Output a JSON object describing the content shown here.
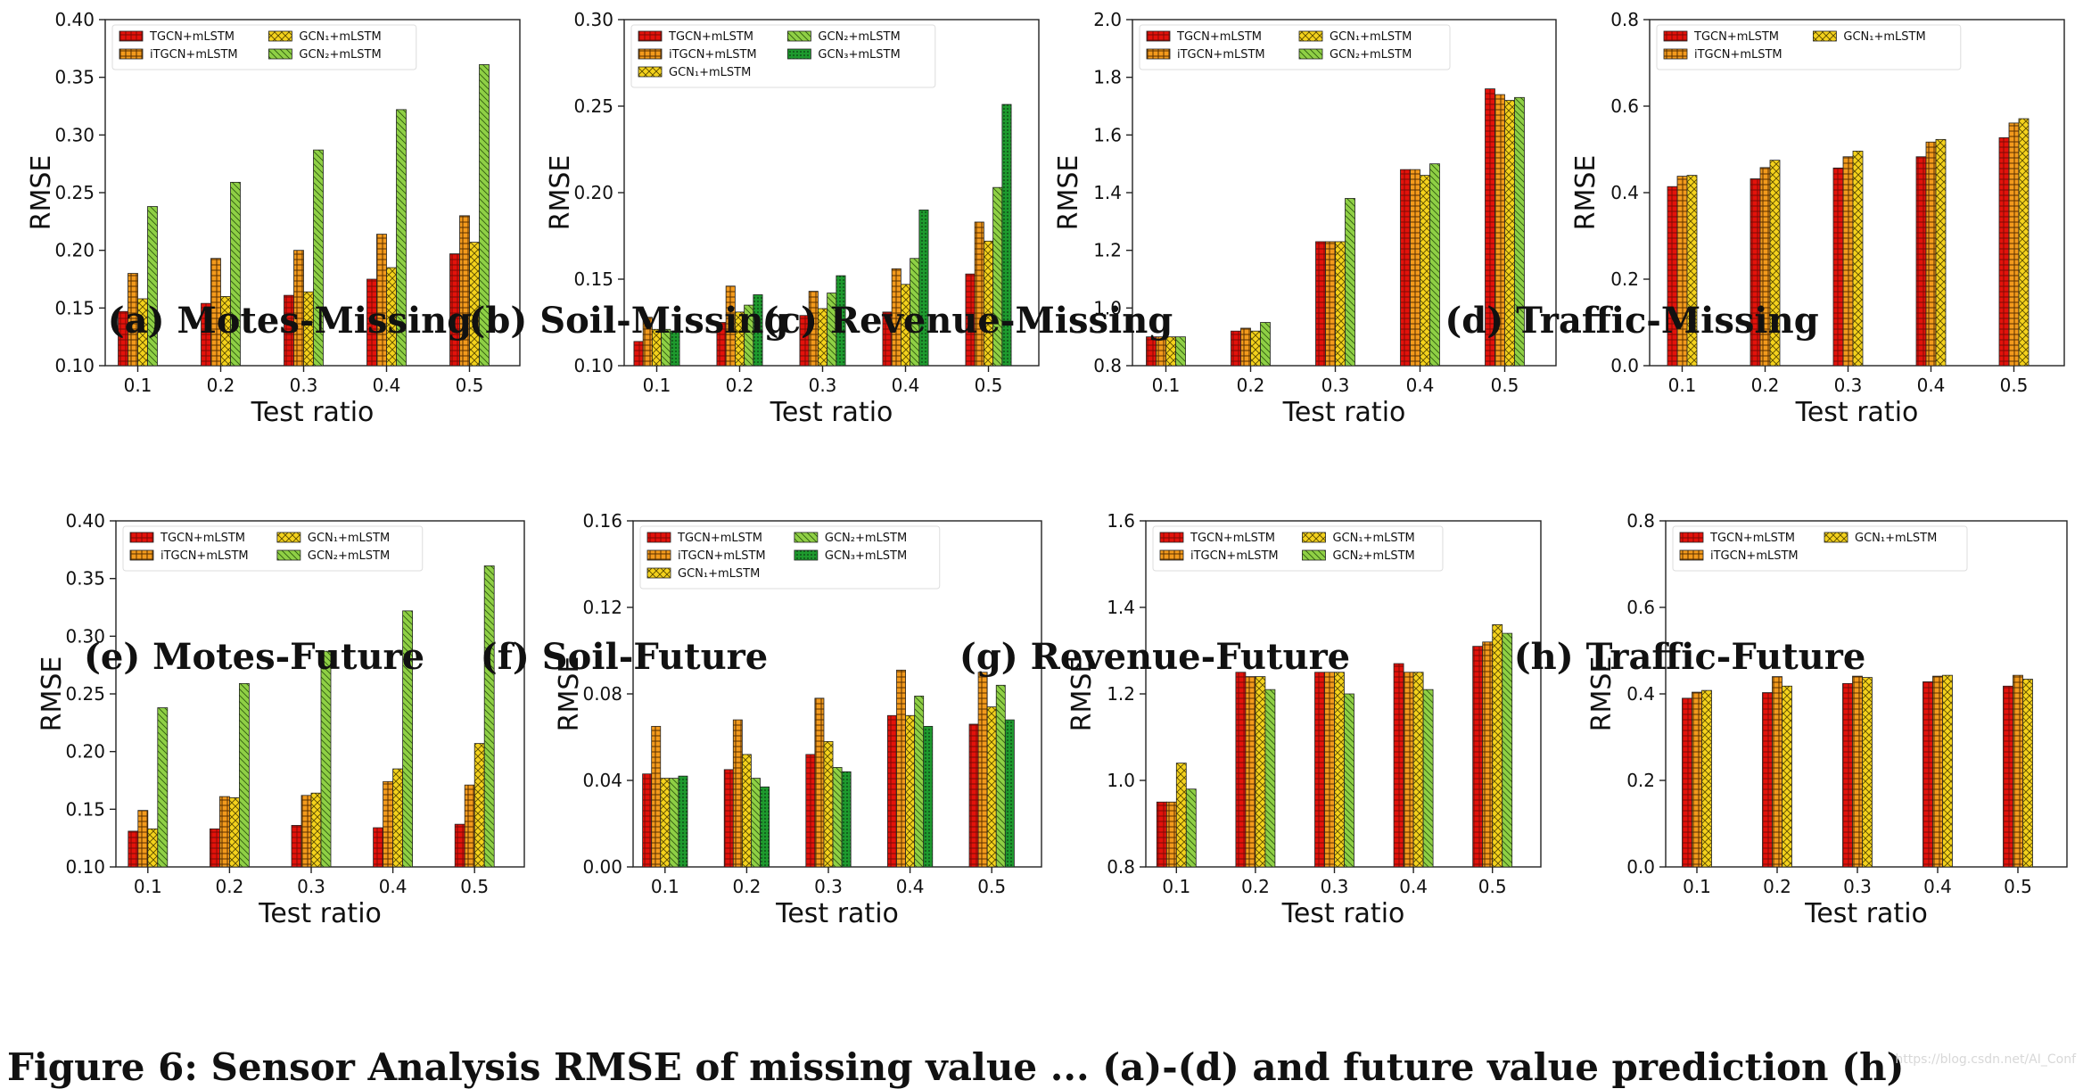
{
  "figure": {
    "caption_fragment": "Figure 6: Sensor Analysis RMSE of missing value ... (a)-(d) and future value prediction (h)",
    "watermark": "https://blog.csdn.net/AI_Conf"
  },
  "colors": {
    "TGCN+mLSTM": "#e3120b",
    "iTGCN+mLSTM": "#f39a1c",
    "GCN1+mLSTM": "#f4d21c",
    "GCN2+mLSTM": "#8fd045",
    "GCN3+mLSTM": "#1e9a2e"
  },
  "chart_data": [
    {
      "panel": "a",
      "caption": "(a) Motes-Missing",
      "type": "bar",
      "xlabel": "Test ratio",
      "ylabel": "RMSE",
      "categories": [
        "0.1",
        "0.2",
        "0.3",
        "0.4",
        "0.5"
      ],
      "ylim": [
        0.1,
        0.4
      ],
      "yticks": [
        "0.10",
        "0.15",
        "0.20",
        "0.25",
        "0.30",
        "0.35",
        "0.40"
      ],
      "legend": {
        "placement": "top-left",
        "columns": 2
      },
      "series": [
        {
          "name": "TGCN+mLSTM",
          "values": [
            0.147,
            0.154,
            0.161,
            0.175,
            0.197
          ]
        },
        {
          "name": "iTGCN+mLSTM",
          "values": [
            0.18,
            0.193,
            0.2,
            0.214,
            0.23
          ]
        },
        {
          "name": "GCN₁+mLSTM",
          "values": [
            0.158,
            0.16,
            0.164,
            0.185,
            0.207
          ]
        },
        {
          "name": "GCN₂+mLSTM",
          "values": [
            0.238,
            0.259,
            0.287,
            0.322,
            0.361
          ]
        }
      ]
    },
    {
      "panel": "b",
      "caption": "(b) Soil-Missing",
      "type": "bar",
      "xlabel": "Test ratio",
      "ylabel": "RMSE",
      "categories": [
        "0.1",
        "0.2",
        "0.3",
        "0.4",
        "0.5"
      ],
      "ylim": [
        0.1,
        0.3
      ],
      "yticks": [
        "0.10",
        "0.15",
        "0.20",
        "0.25",
        "0.30"
      ],
      "legend": {
        "placement": "top-left",
        "columns": 2
      },
      "series": [
        {
          "name": "TGCN+mLSTM",
          "values": [
            0.114,
            0.125,
            0.129,
            0.131,
            0.153
          ]
        },
        {
          "name": "iTGCN+mLSTM",
          "values": [
            0.128,
            0.146,
            0.143,
            0.156,
            0.183
          ]
        },
        {
          "name": "GCN₁+mLSTM",
          "values": [
            0.121,
            0.131,
            0.133,
            0.147,
            0.172
          ]
        },
        {
          "name": "GCN₂+mLSTM",
          "values": [
            0.121,
            0.135,
            0.142,
            0.162,
            0.203
          ]
        },
        {
          "name": "GCN₃+mLSTM",
          "values": [
            0.12,
            0.141,
            0.152,
            0.19,
            0.251
          ]
        }
      ]
    },
    {
      "panel": "c",
      "caption": "(c) Revenue-Missing",
      "type": "bar",
      "xlabel": "Test ratio",
      "ylabel": "RMSE",
      "categories": [
        "0.1",
        "0.2",
        "0.3",
        "0.4",
        "0.5"
      ],
      "ylim": [
        0.8,
        2.0
      ],
      "yticks": [
        "0.8",
        "1.0",
        "1.2",
        "1.4",
        "1.6",
        "1.8",
        "2.0"
      ],
      "legend": {
        "placement": "top-left",
        "columns": 2
      },
      "series": [
        {
          "name": "TGCN+mLSTM",
          "values": [
            0.9,
            0.92,
            1.23,
            1.48,
            1.76
          ]
        },
        {
          "name": "iTGCN+mLSTM",
          "values": [
            0.9,
            0.93,
            1.23,
            1.48,
            1.74
          ]
        },
        {
          "name": "GCN₁+mLSTM",
          "values": [
            0.9,
            0.92,
            1.23,
            1.46,
            1.72
          ]
        },
        {
          "name": "GCN₂+mLSTM",
          "values": [
            0.9,
            0.95,
            1.38,
            1.5,
            1.73
          ]
        }
      ]
    },
    {
      "panel": "d",
      "caption": "(d) Traffic-Missing",
      "type": "bar",
      "xlabel": "Test ratio",
      "ylabel": "RMSE",
      "categories": [
        "0.1",
        "0.2",
        "0.3",
        "0.4",
        "0.5"
      ],
      "ylim": [
        0.0,
        0.8
      ],
      "yticks": [
        "0.0",
        "0.2",
        "0.4",
        "0.6",
        "0.8"
      ],
      "legend": {
        "placement": "top-left",
        "columns": 2
      },
      "series": [
        {
          "name": "TGCN+mLSTM",
          "values": [
            0.414,
            0.432,
            0.457,
            0.483,
            0.527
          ]
        },
        {
          "name": "iTGCN+mLSTM",
          "values": [
            0.438,
            0.458,
            0.483,
            0.517,
            0.561
          ]
        },
        {
          "name": "GCN₁+mLSTM",
          "values": [
            0.44,
            0.475,
            0.496,
            0.523,
            0.571
          ]
        }
      ]
    },
    {
      "panel": "e",
      "caption": "(e) Motes-Future",
      "type": "bar",
      "xlabel": "Test ratio",
      "ylabel": "RMSE",
      "categories": [
        "0.1",
        "0.2",
        "0.3",
        "0.4",
        "0.5"
      ],
      "ylim": [
        0.1,
        0.4
      ],
      "yticks": [
        "0.10",
        "0.15",
        "0.20",
        "0.25",
        "0.30",
        "0.35",
        "0.40"
      ],
      "legend": {
        "placement": "top-left",
        "columns": 2
      },
      "series": [
        {
          "name": "TGCN+mLSTM",
          "values": [
            0.131,
            0.133,
            0.136,
            0.134,
            0.137
          ]
        },
        {
          "name": "iTGCN+mLSTM",
          "values": [
            0.149,
            0.161,
            0.162,
            0.174,
            0.171
          ]
        },
        {
          "name": "GCN₁+mLSTM",
          "values": [
            0.133,
            0.16,
            0.164,
            0.185,
            0.207
          ]
        },
        {
          "name": "GCN₂+mLSTM",
          "values": [
            0.238,
            0.259,
            0.287,
            0.322,
            0.361
          ]
        }
      ]
    },
    {
      "panel": "f",
      "caption": "(f) Soil-Future",
      "type": "bar",
      "xlabel": "Test ratio",
      "ylabel": "RMSE",
      "categories": [
        "0.1",
        "0.2",
        "0.3",
        "0.4",
        "0.5"
      ],
      "ylim": [
        0.0,
        0.16
      ],
      "yticks": [
        "0.00",
        "0.04",
        "0.08",
        "0.12",
        "0.16"
      ],
      "legend": {
        "placement": "top-left",
        "columns": 2
      },
      "series": [
        {
          "name": "TGCN+mLSTM",
          "values": [
            0.043,
            0.045,
            0.052,
            0.07,
            0.066
          ]
        },
        {
          "name": "iTGCN+mLSTM",
          "values": [
            0.065,
            0.068,
            0.078,
            0.091,
            0.09
          ]
        },
        {
          "name": "GCN₁+mLSTM",
          "values": [
            0.041,
            0.052,
            0.058,
            0.07,
            0.074
          ]
        },
        {
          "name": "GCN₂+mLSTM",
          "values": [
            0.041,
            0.041,
            0.046,
            0.079,
            0.084
          ]
        },
        {
          "name": "GCN₃+mLSTM",
          "values": [
            0.042,
            0.037,
            0.044,
            0.065,
            0.068
          ]
        }
      ]
    },
    {
      "panel": "g",
      "caption": "(g) Revenue-Future",
      "type": "bar",
      "xlabel": "Test ratio",
      "ylabel": "RMSE",
      "categories": [
        "0.1",
        "0.2",
        "0.3",
        "0.4",
        "0.5"
      ],
      "ylim": [
        0.8,
        1.6
      ],
      "yticks": [
        "0.8",
        "1.0",
        "1.2",
        "1.4",
        "1.6"
      ],
      "legend": {
        "placement": "top-left",
        "columns": 2
      },
      "series": [
        {
          "name": "TGCN+mLSTM",
          "values": [
            0.95,
            1.25,
            1.25,
            1.27,
            1.31
          ]
        },
        {
          "name": "iTGCN+mLSTM",
          "values": [
            0.95,
            1.24,
            1.25,
            1.25,
            1.32
          ]
        },
        {
          "name": "GCN₁+mLSTM",
          "values": [
            1.04,
            1.24,
            1.25,
            1.25,
            1.36
          ]
        },
        {
          "name": "GCN₂+mLSTM",
          "values": [
            0.98,
            1.21,
            1.2,
            1.21,
            1.34
          ]
        }
      ]
    },
    {
      "panel": "h",
      "caption": "(h) Traffic-Future",
      "type": "bar",
      "xlabel": "Test ratio",
      "ylabel": "RMSE",
      "categories": [
        "0.1",
        "0.2",
        "0.3",
        "0.4",
        "0.5"
      ],
      "ylim": [
        0.0,
        0.8
      ],
      "yticks": [
        "0.0",
        "0.2",
        "0.4",
        "0.6",
        "0.8"
      ],
      "legend": {
        "placement": "top-left",
        "columns": 2
      },
      "series": [
        {
          "name": "TGCN+mLSTM",
          "values": [
            0.39,
            0.403,
            0.424,
            0.428,
            0.418
          ]
        },
        {
          "name": "iTGCN+mLSTM",
          "values": [
            0.404,
            0.44,
            0.441,
            0.441,
            0.443
          ]
        },
        {
          "name": "GCN₁+mLSTM",
          "values": [
            0.408,
            0.418,
            0.438,
            0.443,
            0.434
          ]
        }
      ]
    }
  ]
}
